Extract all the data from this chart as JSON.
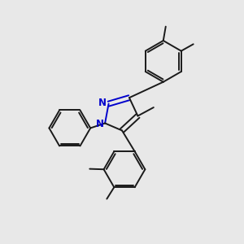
{
  "background_color": "#e8e8e8",
  "bond_color": "#1a1a1a",
  "nitrogen_color": "#0000cc",
  "bond_width": 1.4,
  "figsize": [
    3.0,
    3.0
  ],
  "dpi": 100,
  "xlim": [
    0,
    10
  ],
  "ylim": [
    0,
    10
  ]
}
